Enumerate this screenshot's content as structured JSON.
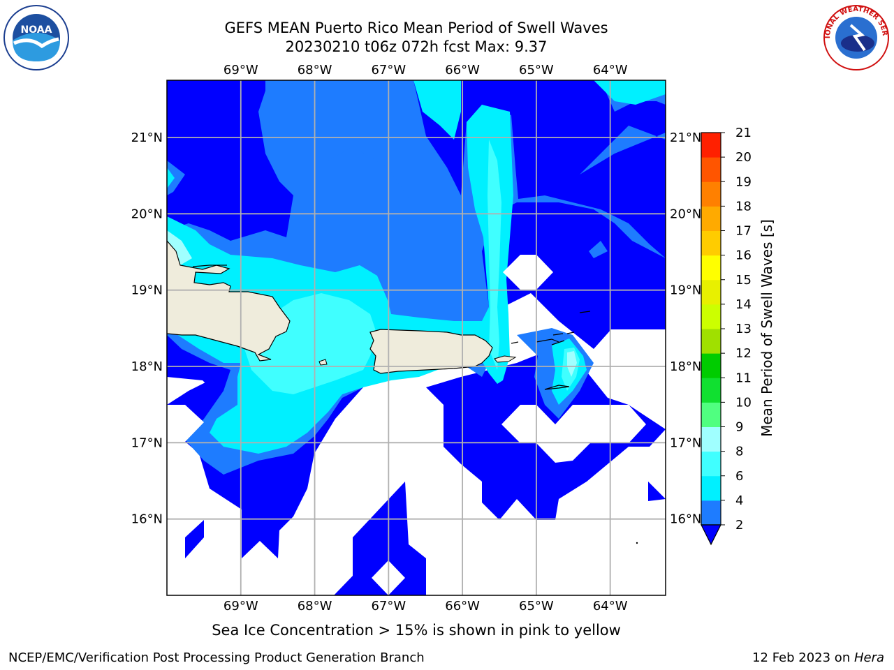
{
  "title": {
    "line1": "GEFS MEAN Puerto Rico Mean Period of Swell Waves",
    "line2": "20230210 t06z 072h fcst   Max: 9.37"
  },
  "logos": {
    "left": "NOAA",
    "right": "NATIONAL WEATHER SERVICE"
  },
  "map": {
    "lon_labels": [
      "69°W",
      "68°W",
      "67°W",
      "66°W",
      "65°W",
      "64°W"
    ],
    "lat_labels": [
      "21°N",
      "20°N",
      "19°N",
      "18°N",
      "17°N",
      "16°N"
    ],
    "lon_values": [
      -69,
      -68,
      -67,
      -66,
      -65,
      -64
    ],
    "lat_values": [
      21,
      20,
      19,
      18,
      17,
      16
    ],
    "extent": {
      "lon_min": -70.0,
      "lon_max": -63.25,
      "lat_min": 15.0,
      "lat_max": 21.75
    },
    "land_color": "#efecdc",
    "grid_color": "#b0b0b0"
  },
  "colorbar": {
    "label": "Mean Period of Swell Waves [s]",
    "ticks": [
      "2",
      "4",
      "6",
      "8",
      "9",
      "10",
      "11",
      "12",
      "13",
      "14",
      "15",
      "16",
      "17",
      "18",
      "19",
      "20",
      "21"
    ],
    "colors": [
      "#0000ff",
      "#1e7cff",
      "#00f0ff",
      "#40ffff",
      "#a0ffff",
      "#50ff80",
      "#10e030",
      "#00cc00",
      "#a0e000",
      "#ccff00",
      "#e8f000",
      "#ffff00",
      "#ffcc00",
      "#ffaa00",
      "#ff8000",
      "#ff5500",
      "#ff2000",
      "#ff0000"
    ],
    "extend_min_color": "#0000ff"
  },
  "caption": "Sea Ice Concentration > 15% is shown in pink to yellow",
  "footer": {
    "left": "NCEP/EMC/Verification Post Processing Product Generation Branch",
    "right_date": "12 Feb 2023 on ",
    "right_host": "Hera"
  }
}
